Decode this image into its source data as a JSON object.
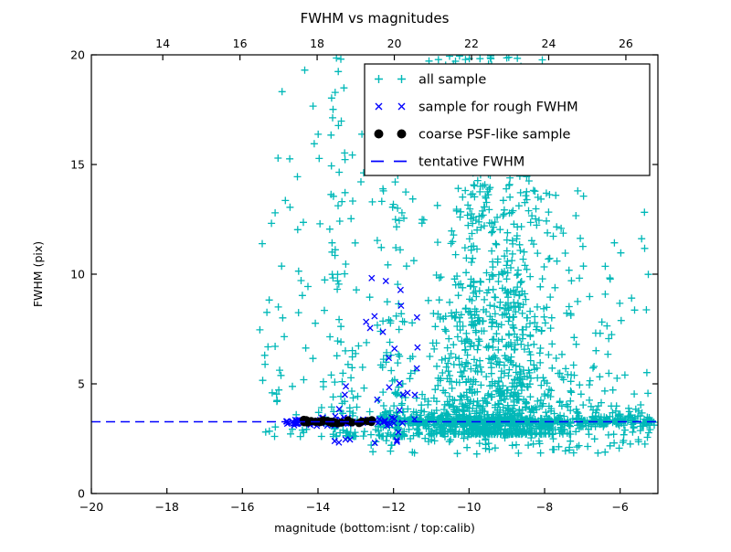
{
  "figure": {
    "background": "#ffffff",
    "frame_color": "#000000"
  },
  "chart_data": {
    "type": "scatter",
    "title": "FWHM vs magnitudes",
    "xlabel": "magnitude (bottom:isnt / top:calib)",
    "ylabel": "FWHM (pix)",
    "xlim": [
      -20,
      -5
    ],
    "ylim": [
      0,
      20
    ],
    "top_xlim": [
      12.15,
      26.83
    ],
    "grid": false,
    "legend_position": "upper right",
    "x_ticks": [
      {
        "v": -20,
        "label": "−20"
      },
      {
        "v": -18,
        "label": "−18"
      },
      {
        "v": -16,
        "label": "−16"
      },
      {
        "v": -14,
        "label": "−14"
      },
      {
        "v": -12,
        "label": "−12"
      },
      {
        "v": -10,
        "label": "−10"
      },
      {
        "v": -8,
        "label": "−8"
      },
      {
        "v": -6,
        "label": "−6"
      }
    ],
    "y_ticks": [
      {
        "v": 0,
        "label": "0"
      },
      {
        "v": 5,
        "label": "5"
      },
      {
        "v": 10,
        "label": "10"
      },
      {
        "v": 15,
        "label": "15"
      },
      {
        "v": 20,
        "label": "20"
      }
    ],
    "top_ticks": [
      {
        "v": 14,
        "label": "14"
      },
      {
        "v": 16,
        "label": "16"
      },
      {
        "v": 18,
        "label": "18"
      },
      {
        "v": 20,
        "label": "20"
      },
      {
        "v": 22,
        "label": "22"
      },
      {
        "v": 24,
        "label": "24"
      },
      {
        "v": 26,
        "label": "26"
      }
    ],
    "tentative_fwhm": 3.27,
    "colors": {
      "all_sample": "#00b8b8",
      "rough_fwhm": "#0000ff",
      "psf_like": "#000000",
      "tentative_line": "#0000ff"
    },
    "legend": [
      {
        "label": "all sample",
        "marker": "plus",
        "color": "#00b8b8"
      },
      {
        "label": "sample for rough FWHM",
        "marker": "cross",
        "color": "#0000ff"
      },
      {
        "label": "coarse PSF-like sample",
        "marker": "dot",
        "color": "#000000"
      },
      {
        "label": "tentative FWHM",
        "marker": "dashes",
        "color": "#0000ff"
      }
    ],
    "seed": 42,
    "series": [
      {
        "name": "all sample",
        "marker": "plus",
        "color": "#00b8b8",
        "clusters": [
          {
            "n": 80,
            "x": {
              "t": "u",
              "a": -12.4,
              "b": -10.6
            },
            "y": {
              "t": "n",
              "mu": 3.32,
              "s": 0.12
            }
          },
          {
            "n": 160,
            "x": {
              "t": "u",
              "a": -10.6,
              "b": -7.6
            },
            "y": {
              "t": "n",
              "mu": 3.3,
              "s": 0.1
            }
          },
          {
            "n": 90,
            "x": {
              "t": "u",
              "a": -7.7,
              "b": -5.05
            },
            "y": {
              "t": "n",
              "mu": 3.3,
              "s": 0.14
            }
          },
          {
            "n": 260,
            "x": {
              "t": "u",
              "a": -12.3,
              "b": -5.2
            },
            "y": {
              "t": "n",
              "mu": 3.35,
              "s": 0.4
            }
          },
          {
            "n": 700,
            "x": {
              "t": "nc",
              "mu": -9.4,
              "s": 0.95,
              "a": -11.7,
              "b": -6.3
            },
            "y": {
              "t": "p",
              "a": 2.7,
              "b": 8,
              "k": 2.2
            }
          },
          {
            "n": 280,
            "x": {
              "t": "nc",
              "mu": -9.35,
              "s": 0.9,
              "a": -11.5,
              "b": -6.8
            },
            "y": {
              "t": "p",
              "a": 8,
              "b": 14,
              "k": 1.6
            }
          },
          {
            "n": 160,
            "x": {
              "t": "nc",
              "mu": -9.5,
              "s": 0.75,
              "a": -11.3,
              "b": -7.6
            },
            "y": {
              "t": "p",
              "a": 14,
              "b": 20,
              "k": 1.2
            }
          },
          {
            "n": 110,
            "x": {
              "t": "u",
              "a": -12.35,
              "b": -11.65
            },
            "y": {
              "t": "p",
              "a": 2.6,
              "b": 20,
              "k": 2.6
            }
          },
          {
            "n": 25,
            "x": {
              "t": "u",
              "a": -12.9,
              "b": -12.35
            },
            "y": {
              "t": "p",
              "a": 2.6,
              "b": 20,
              "k": 2.8
            }
          },
          {
            "n": 100,
            "x": {
              "t": "u",
              "a": -13.7,
              "b": -12.9
            },
            "y": {
              "t": "p",
              "a": 2.6,
              "b": 20,
              "k": 2.4
            }
          },
          {
            "n": 55,
            "x": {
              "t": "u",
              "a": -15.55,
              "b": -13.75
            },
            "y": {
              "t": "p",
              "a": 2.6,
              "b": 13,
              "k": 1.8
            }
          },
          {
            "n": 12,
            "x": {
              "t": "u",
              "a": -15.1,
              "b": -13.6
            },
            "y": {
              "t": "u",
              "a": 13,
              "b": 19.5
            }
          },
          {
            "n": 70,
            "x": {
              "t": "u",
              "a": -12.6,
              "b": -5.3
            },
            "y": {
              "t": "u",
              "a": 1.8,
              "b": 2.85
            }
          },
          {
            "n": 60,
            "x": {
              "t": "u",
              "a": -8.0,
              "b": -5.2
            },
            "y": {
              "t": "p",
              "a": 4.5,
              "b": 13,
              "k": 1.7
            }
          }
        ]
      },
      {
        "name": "sample for rough FWHM",
        "marker": "cross",
        "color": "#0000ff",
        "clusters": [
          {
            "n": 72,
            "x": {
              "t": "u",
              "a": -14.85,
              "b": -11.95
            },
            "y": {
              "t": "n",
              "mu": 3.27,
              "s": 0.09
            }
          },
          {
            "n": 34,
            "x": {
              "t": "u",
              "a": -13.6,
              "b": -11.3
            },
            "y": {
              "t": "p",
              "a": 2.3,
              "b": 10.8,
              "k": 1.9
            }
          }
        ]
      },
      {
        "name": "coarse PSF-like sample",
        "marker": "dot",
        "color": "#000000",
        "clusters": [
          {
            "n": 26,
            "x": {
              "t": "u",
              "a": -14.67,
              "b": -12.57
            },
            "y": {
              "t": "n",
              "mu": 3.27,
              "s": 0.045
            }
          }
        ]
      }
    ]
  }
}
